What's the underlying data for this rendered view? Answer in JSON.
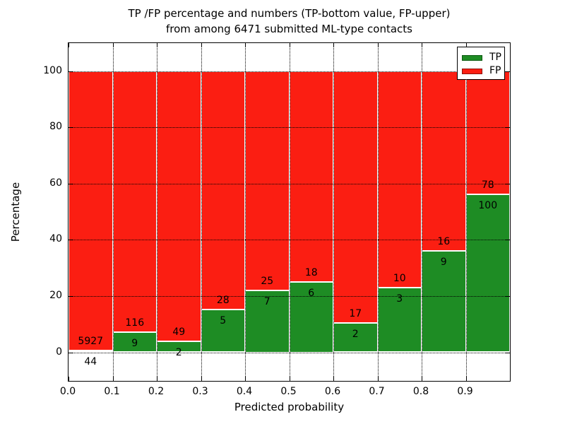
{
  "figure": {
    "title_line1": "TP /FP percentage and numbers (TP-bottom value, FP-upper)",
    "title_line2": "from among 6471 submitted ML-type contacts"
  },
  "chart_data": {
    "type": "bar",
    "stacked": true,
    "orientation": "vertical",
    "title": "TP /FP percentage and numbers (TP-bottom value, FP-upper) from among 6471 submitted ML-type contacts",
    "xlabel": "Predicted probability",
    "ylabel": "Percentage",
    "xlim": [
      0.0,
      1.0
    ],
    "ylim": [
      -11,
      110
    ],
    "grid": "dotted",
    "bin_width": 0.1,
    "total_submitted_contacts": 6471,
    "x_tick_labels": [
      "0.0",
      "0.1",
      "0.2",
      "0.3",
      "0.4",
      "0.5",
      "0.6",
      "0.7",
      "0.8",
      "0.9"
    ],
    "y_tick_values": [
      0,
      20,
      40,
      60,
      80,
      100
    ],
    "series": [
      {
        "name": "TP",
        "color": "#1e8c24",
        "edge_color": "#0d5a12",
        "stack_position": "bottom"
      },
      {
        "name": "FP",
        "color": "#fb1e12",
        "edge_color": "#8f100a",
        "stack_position": "top"
      }
    ],
    "legend": {
      "position": "upper-right",
      "entries": [
        "TP",
        "FP"
      ]
    },
    "bins": [
      {
        "range": [
          0.0,
          0.1
        ],
        "tp": 44,
        "fp": 5927,
        "tp_pct": 0.7
      },
      {
        "range": [
          0.1,
          0.2
        ],
        "tp": 9,
        "fp": 116,
        "tp_pct": 7.2
      },
      {
        "range": [
          0.2,
          0.3
        ],
        "tp": 2,
        "fp": 49,
        "tp_pct": 3.9
      },
      {
        "range": [
          0.3,
          0.4
        ],
        "tp": 5,
        "fp": 28,
        "tp_pct": 15.2
      },
      {
        "range": [
          0.4,
          0.5
        ],
        "tp": 7,
        "fp": 25,
        "tp_pct": 21.9
      },
      {
        "range": [
          0.5,
          0.6
        ],
        "tp": 6,
        "fp": 18,
        "tp_pct": 25.0
      },
      {
        "range": [
          0.6,
          0.7
        ],
        "tp": 2,
        "fp": 17,
        "tp_pct": 10.5
      },
      {
        "range": [
          0.7,
          0.8
        ],
        "tp": 3,
        "fp": 10,
        "tp_pct": 23.1
      },
      {
        "range": [
          0.8,
          0.9
        ],
        "tp": 9,
        "fp": 16,
        "tp_pct": 36.0
      },
      {
        "range": [
          0.9,
          1.0
        ],
        "tp": 100,
        "fp": 78,
        "tp_pct": 56.2
      }
    ]
  }
}
